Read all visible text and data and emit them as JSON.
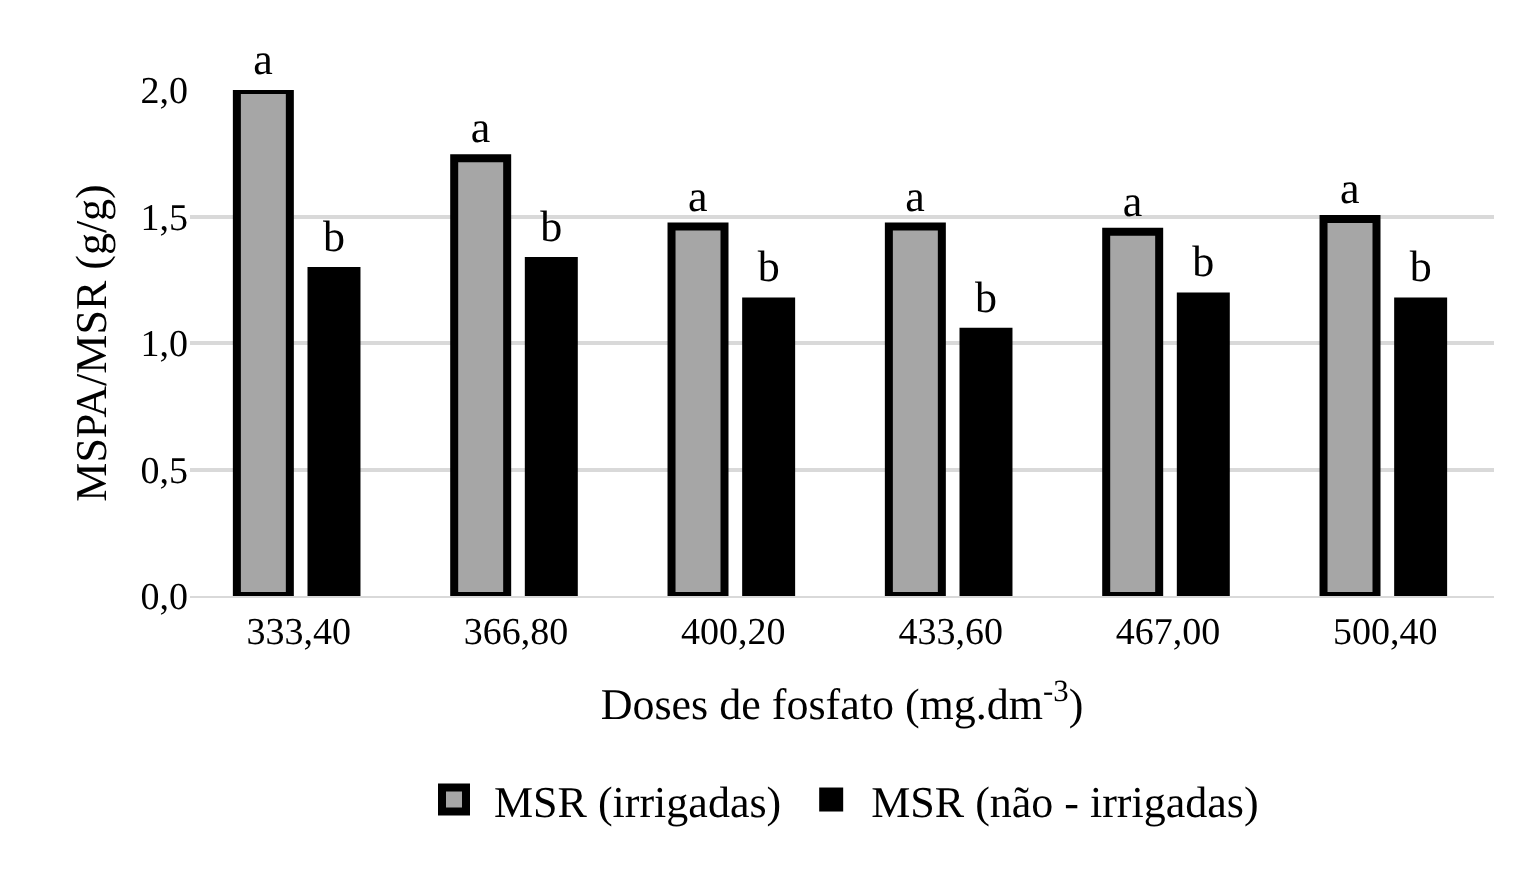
{
  "chart_data": {
    "type": "bar",
    "xlabel": "Doses de fosfato (mg.dm$^{-3}$)",
    "ylabel": "MSPA/MSR (g/g)",
    "categories": [
      "333,40",
      "366,80",
      "400,20",
      "433,60",
      "467,00",
      "500,40"
    ],
    "series": [
      {
        "name": "MSR (irrigadas)",
        "color": "#a6a6a6",
        "values": [
          2.0,
          1.73,
          1.46,
          1.46,
          1.44,
          1.49
        ],
        "value_labels": [
          "a",
          "a",
          "a",
          "a",
          "a",
          "a"
        ]
      },
      {
        "name": "MSR (não - irrigadas)",
        "color": "#000000",
        "values": [
          1.3,
          1.34,
          1.18,
          1.06,
          1.2,
          1.18
        ],
        "value_labels": [
          "b",
          "b",
          "b",
          "b",
          "b",
          "b"
        ]
      }
    ],
    "ylim": [
      0,
      2.0
    ],
    "yticks": [
      {
        "value": 0,
        "label": "0,0"
      },
      {
        "value": 0.5,
        "label": "0,5"
      },
      {
        "value": 1,
        "label": "1,0"
      },
      {
        "value": 1.5,
        "label": "1,5"
      },
      {
        "value": 2,
        "label": "2,0"
      }
    ],
    "grid": "y",
    "legend": "bottom"
  }
}
